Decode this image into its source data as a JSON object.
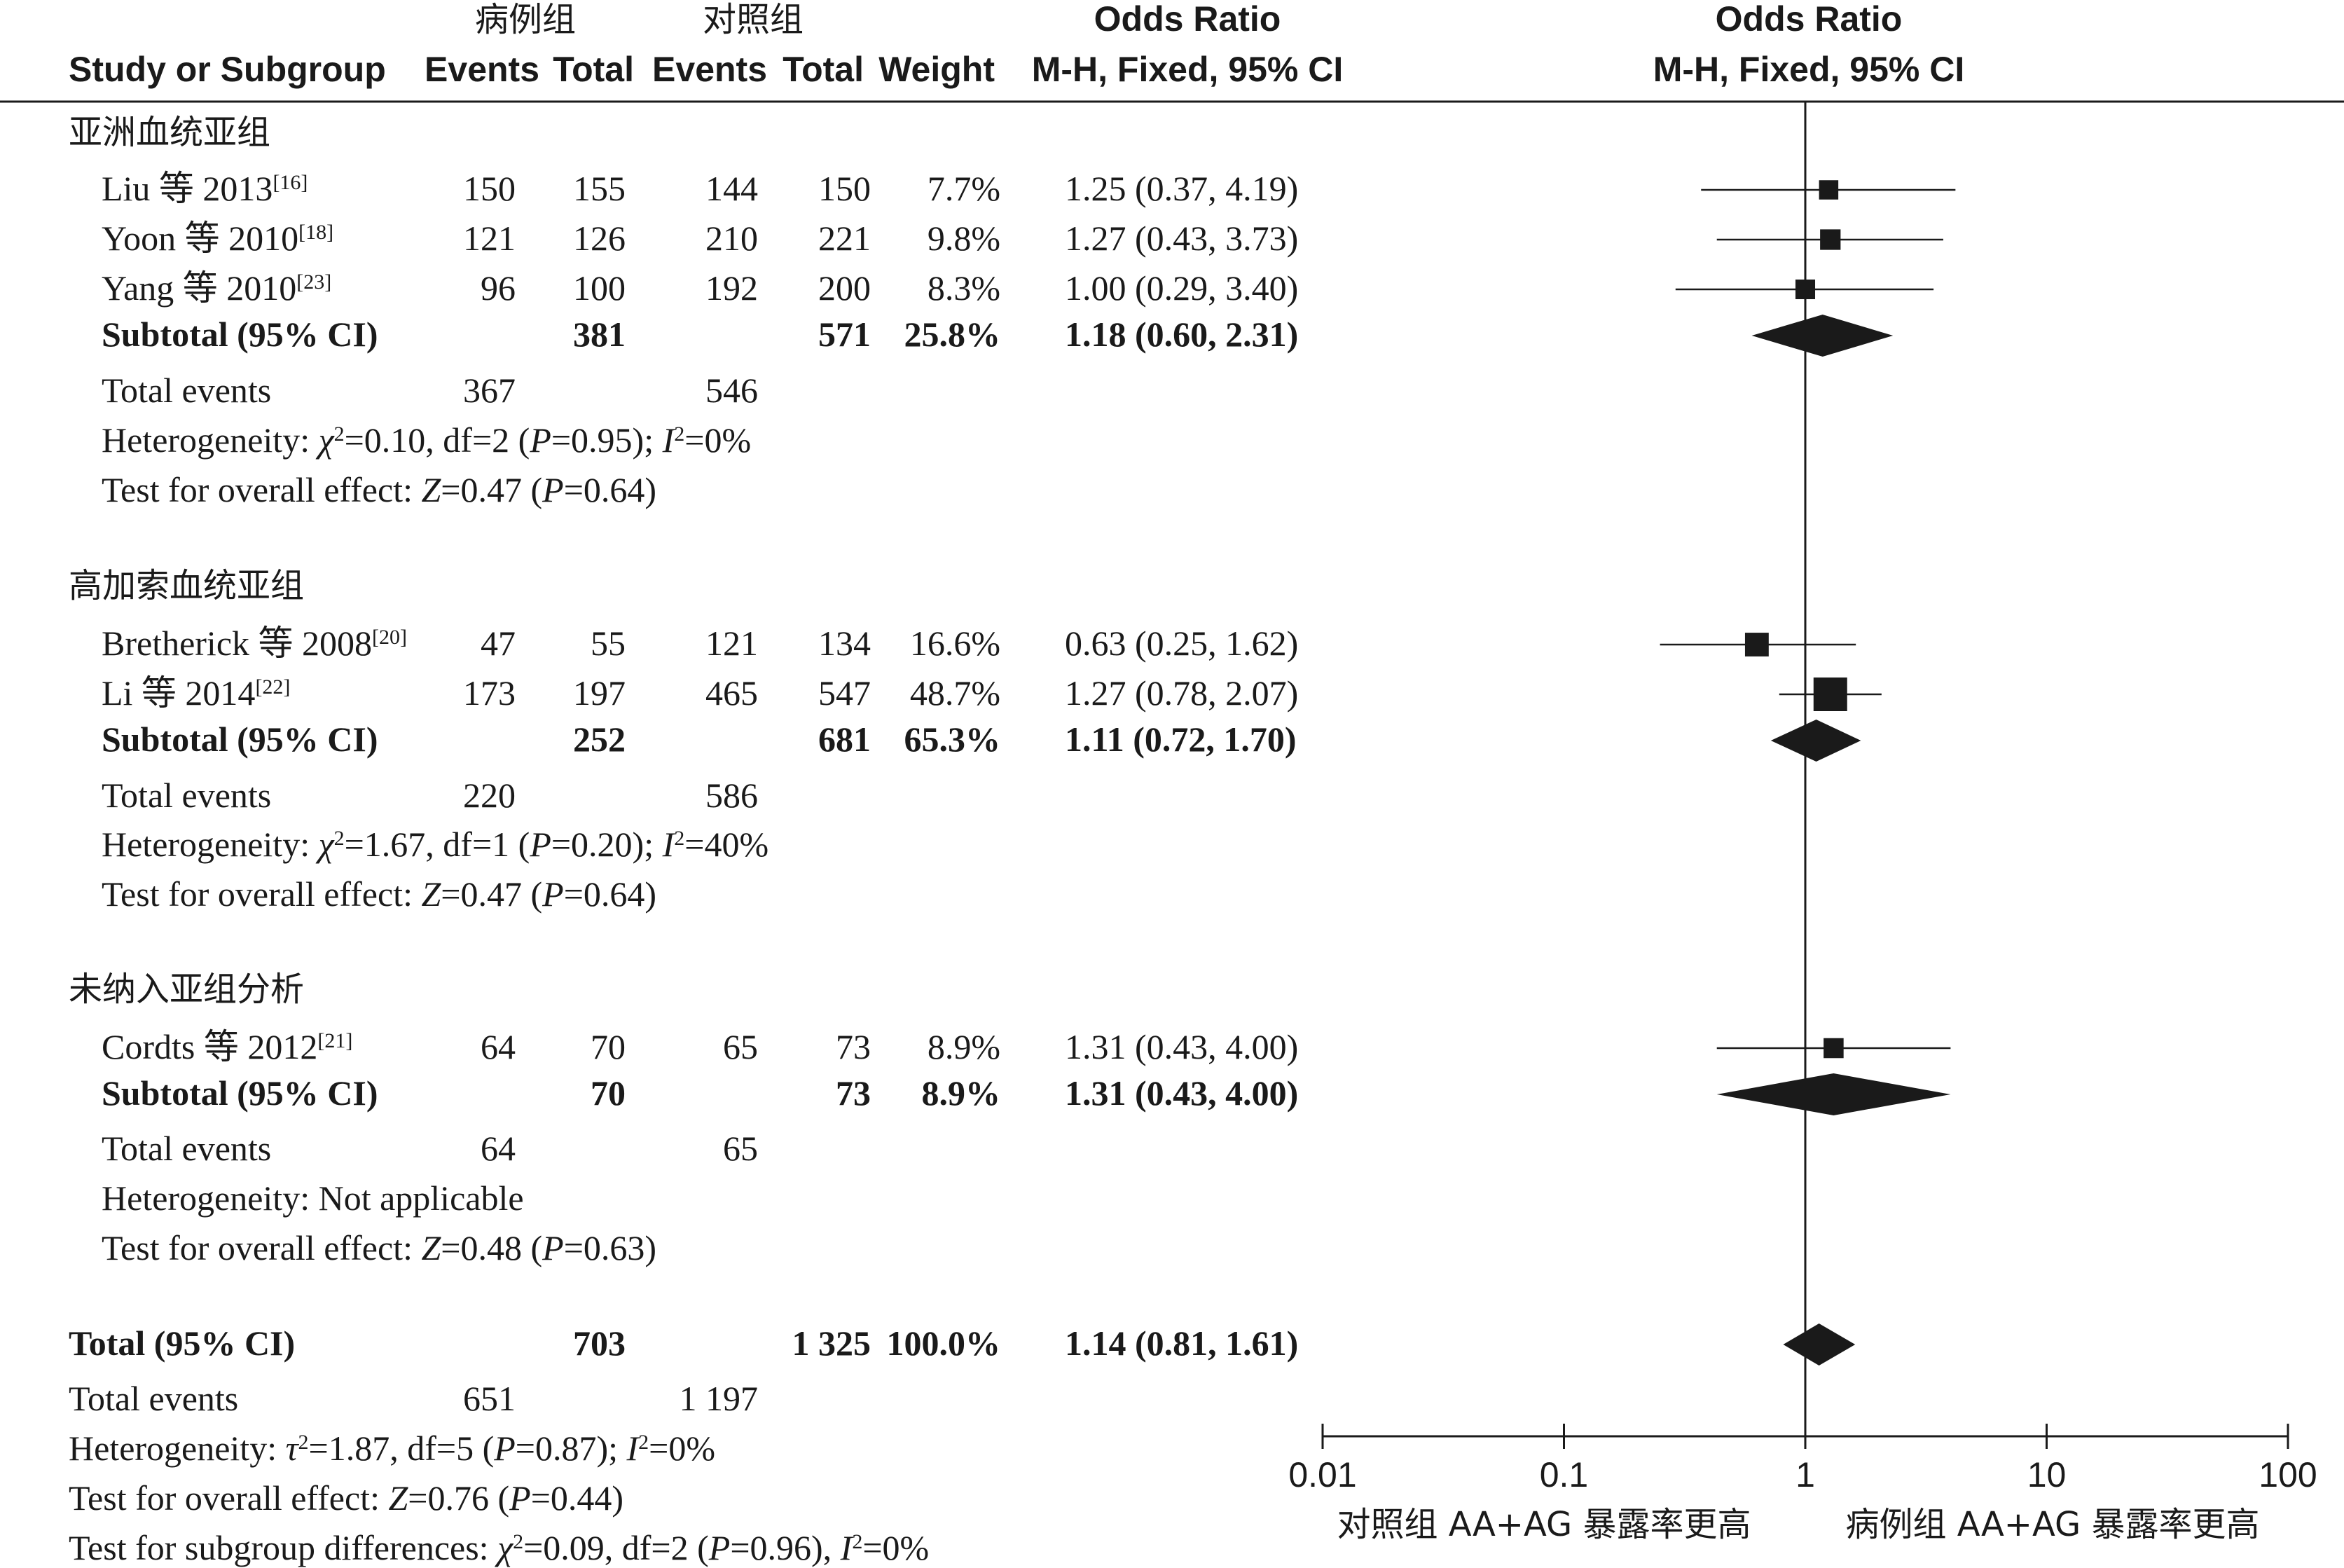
{
  "headers": {
    "study": "Study or Subgroup",
    "case_group": "病例组",
    "control_group": "对照组",
    "events": "Events",
    "total": "Total",
    "weight": "Weight",
    "or_title": "Odds Ratio",
    "or_method": "M-H, Fixed, 95% CI"
  },
  "groups": [
    {
      "name": "亚洲血统亚组",
      "studies": [
        {
          "label": "Liu 等 2013",
          "ref": "[16]",
          "case_events": "150",
          "case_total": "155",
          "ctrl_events": "144",
          "ctrl_total": "150",
          "weight": "7.7%",
          "ci_text": "1.25 (0.37, 4.19)"
        },
        {
          "label": "Yoon 等 2010",
          "ref": "[18]",
          "case_events": "121",
          "case_total": "126",
          "ctrl_events": "210",
          "ctrl_total": "221",
          "weight": "9.8%",
          "ci_text": "1.27 (0.43, 3.73)"
        },
        {
          "label": "Yang 等 2010",
          "ref": "[23]",
          "case_events": "96",
          "case_total": "100",
          "ctrl_events": "192",
          "ctrl_total": "200",
          "weight": "8.3%",
          "ci_text": "1.00 (0.29, 3.40)"
        }
      ],
      "subtotal": {
        "label": "Subtotal (95% CI)",
        "case_total": "381",
        "ctrl_total": "571",
        "weight": "25.8%",
        "ci_text": "1.18 (0.60, 2.31)"
      },
      "total_events": {
        "label": "Total events",
        "case": "367",
        "ctrl": "546"
      },
      "heterogeneity": {
        "prefix": "Heterogeneity: ",
        "symbol": "χ",
        "after_symbol": "=0.10, df=2 (",
        "p": "P",
        "p_value": "=0.95); ",
        "i": "I",
        "i_value": "=0%"
      },
      "overall": {
        "prefix": "Test for overall effect: ",
        "z": "Z",
        "z_value": "=0.47 (",
        "p": "P",
        "p_value": "=0.64)"
      }
    },
    {
      "name": "高加索血统亚组",
      "studies": [
        {
          "label": "Bretherick 等 2008",
          "ref": "[20]",
          "case_events": "47",
          "case_total": "55",
          "ctrl_events": "121",
          "ctrl_total": "134",
          "weight": "16.6%",
          "ci_text": "0.63 (0.25, 1.62)"
        },
        {
          "label": "Li 等 2014",
          "ref": "[22]",
          "case_events": "173",
          "case_total": "197",
          "ctrl_events": "465",
          "ctrl_total": "547",
          "weight": "48.7%",
          "ci_text": "1.27 (0.78, 2.07)"
        }
      ],
      "subtotal": {
        "label": "Subtotal (95% CI)",
        "case_total": "252",
        "ctrl_total": "681",
        "weight": "65.3%",
        "ci_text": "1.11 (0.72, 1.70)"
      },
      "total_events": {
        "label": "Total events",
        "case": "220",
        "ctrl": "586"
      },
      "heterogeneity": {
        "prefix": "Heterogeneity: ",
        "symbol": "χ",
        "after_symbol": "=1.67, df=1 (",
        "p": "P",
        "p_value": "=0.20); ",
        "i": "I",
        "i_value": "=40%"
      },
      "overall": {
        "prefix": "Test for overall effect: ",
        "z": "Z",
        "z_value": "=0.47 (",
        "p": "P",
        "p_value": "=0.64)"
      }
    },
    {
      "name": "未纳入亚组分析",
      "studies": [
        {
          "label": "Cordts 等 2012",
          "ref": "[21]",
          "case_events": "64",
          "case_total": "70",
          "ctrl_events": "65",
          "ctrl_total": "73",
          "weight": "8.9%",
          "ci_text": "1.31 (0.43, 4.00)"
        }
      ],
      "subtotal": {
        "label": "Subtotal (95% CI)",
        "case_total": "70",
        "ctrl_total": "73",
        "weight": "8.9%",
        "ci_text": "1.31 (0.43, 4.00)"
      },
      "total_events": {
        "label": "Total events",
        "case": "64",
        "ctrl": "65"
      },
      "heterogeneity_text": "Heterogeneity: Not applicable",
      "overall": {
        "prefix": "Test for overall effect: ",
        "z": "Z",
        "z_value": "=0.48 (",
        "p": "P",
        "p_value": "=0.63)"
      }
    }
  ],
  "total": {
    "label": "Total (95% CI)",
    "case_total": "703",
    "ctrl_total": "1 325",
    "weight": "100.0%",
    "ci_text": "1.14 (0.81, 1.61)",
    "total_events": {
      "label": "Total events",
      "case": "651",
      "ctrl": "1 197"
    },
    "heterogeneity": {
      "prefix": "Heterogeneity: ",
      "symbol": "τ",
      "after_symbol": "=1.87, df=5 (",
      "p": "P",
      "p_value": "=0.87); ",
      "i": "I",
      "i_value": "=0%"
    },
    "overall": {
      "prefix": "Test for overall effect: ",
      "z": "Z",
      "z_value": "=0.76 (",
      "p": "P",
      "p_value": "=0.44)"
    },
    "subgroup_diff": {
      "prefix": "Test for subgroup differences: ",
      "symbol": "χ",
      "after_symbol": "=0.09, df=2 (",
      "p": "P",
      "p_value": "=0.96), ",
      "i": "I",
      "i_value": "=0%"
    }
  },
  "axis": {
    "ticks": [
      "0.01",
      "0.1",
      "1",
      "10",
      "100"
    ],
    "left_label": "对照组 AA+AG 暴露率更高",
    "right_label": "病例组 AA+AG 暴露率更高"
  },
  "chart_data": {
    "type": "forest",
    "scale": "log",
    "xlim": [
      0.01,
      100
    ],
    "reference_line": 1,
    "studies": [
      {
        "group": "亚洲血统亚组",
        "study": "Liu 等 2013",
        "or": 1.25,
        "lower": 0.37,
        "upper": 4.19,
        "weight": 7.7
      },
      {
        "group": "亚洲血统亚组",
        "study": "Yoon 等 2010",
        "or": 1.27,
        "lower": 0.43,
        "upper": 3.73,
        "weight": 9.8
      },
      {
        "group": "亚洲血统亚组",
        "study": "Yang 等 2010",
        "or": 1.0,
        "lower": 0.29,
        "upper": 3.4,
        "weight": 8.3
      },
      {
        "group": "高加索血统亚组",
        "study": "Bretherick 等 2008",
        "or": 0.63,
        "lower": 0.25,
        "upper": 1.62,
        "weight": 16.6
      },
      {
        "group": "高加索血统亚组",
        "study": "Li 等 2014",
        "or": 1.27,
        "lower": 0.78,
        "upper": 2.07,
        "weight": 48.7
      },
      {
        "group": "未纳入亚组分析",
        "study": "Cordts 等 2012",
        "or": 1.31,
        "lower": 0.43,
        "upper": 4.0,
        "weight": 8.9
      }
    ],
    "subtotals": [
      {
        "group": "亚洲血统亚组",
        "or": 1.18,
        "lower": 0.6,
        "upper": 2.31,
        "weight": 25.8
      },
      {
        "group": "高加索血统亚组",
        "or": 1.11,
        "lower": 0.72,
        "upper": 1.7,
        "weight": 65.3
      },
      {
        "group": "未纳入亚组分析",
        "or": 1.31,
        "lower": 0.43,
        "upper": 4.0,
        "weight": 8.9
      }
    ],
    "overall": {
      "or": 1.14,
      "lower": 0.81,
      "upper": 1.61,
      "weight": 100.0
    }
  }
}
